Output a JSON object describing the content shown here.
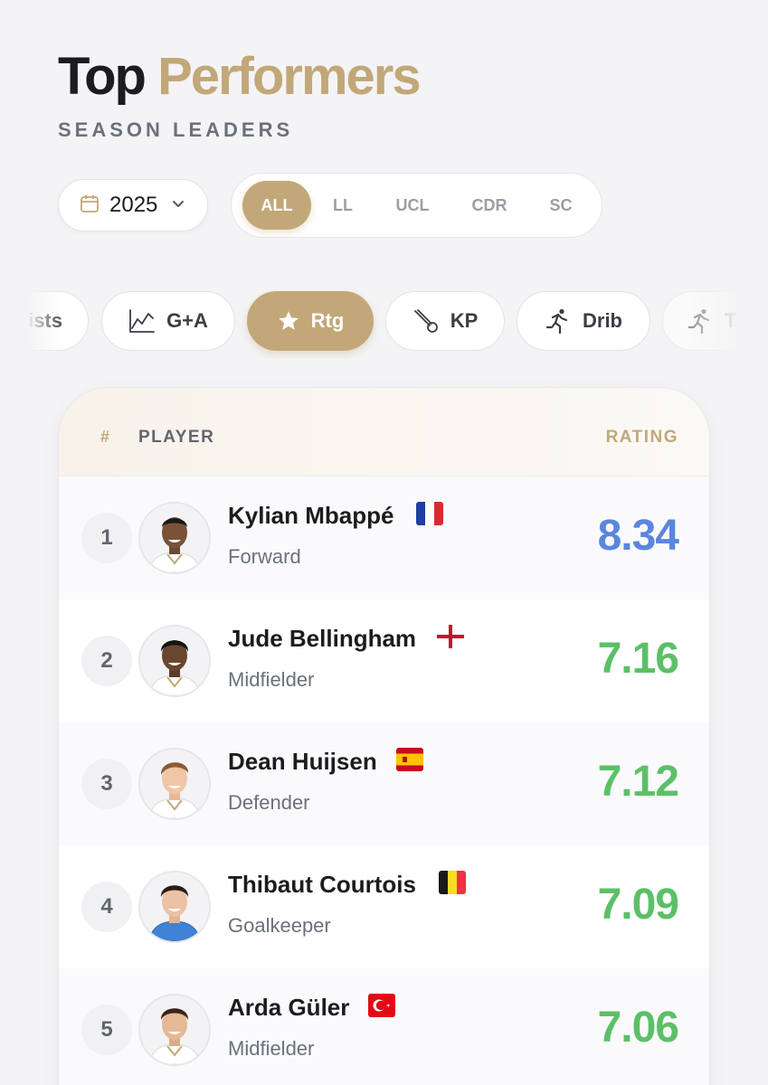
{
  "header": {
    "title_part1": "Top",
    "title_part2": "Performers",
    "subtitle": "SEASON LEADERS"
  },
  "year_selector": {
    "icon": "calendar-icon",
    "value": "2025",
    "chevron": "chevron-down-icon"
  },
  "competitions": [
    {
      "label": "ALL",
      "active": true
    },
    {
      "label": "LL",
      "active": false
    },
    {
      "label": "UCL",
      "active": false
    },
    {
      "label": "CDR",
      "active": false
    },
    {
      "label": "SC",
      "active": false
    }
  ],
  "stat_chips": [
    {
      "label": "ists",
      "icon": "",
      "active": false
    },
    {
      "label": "G+A",
      "icon": "line-chart-icon",
      "active": false
    },
    {
      "label": "Rtg",
      "icon": "star-icon",
      "active": true
    },
    {
      "label": "KP",
      "icon": "key-pass-icon",
      "active": false
    },
    {
      "label": "Drib",
      "icon": "runner-icon",
      "active": false
    },
    {
      "label": "T",
      "icon": "runner-icon",
      "active": false
    }
  ],
  "table": {
    "col_rank": "#",
    "col_player": "PLAYER",
    "col_rating": "RATING",
    "rows": [
      {
        "rank": "1",
        "name": "Kylian Mbappé",
        "position": "Forward",
        "rating": "8.34",
        "flag": "france-flag-icon"
      },
      {
        "rank": "2",
        "name": "Jude Bellingham",
        "position": "Midfielder",
        "rating": "7.16",
        "flag": "england-flag-icon"
      },
      {
        "rank": "3",
        "name": "Dean Huijsen",
        "position": "Defender",
        "rating": "7.12",
        "flag": "spain-flag-icon"
      },
      {
        "rank": "4",
        "name": "Thibaut Courtois",
        "position": "Goalkeeper",
        "rating": "7.09",
        "flag": "belgium-flag-icon"
      },
      {
        "rank": "5",
        "name": "Arda Güler",
        "position": "Midfielder",
        "rating": "7.06",
        "flag": "turkey-flag-icon"
      }
    ]
  },
  "colors": {
    "accent_gold": "#c2a878",
    "rating_top": "#5a86dd",
    "rating_good": "#5cc067"
  }
}
